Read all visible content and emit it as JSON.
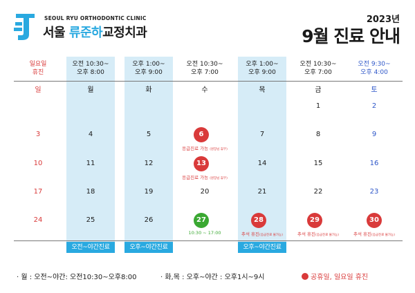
{
  "header": {
    "clinic_en": "SEOUL RYU ORTHODONTIC CLINIC",
    "clinic_ko_prefix": "서울",
    "clinic_ko_accent": "류준하",
    "clinic_ko_suffix": "교정치과",
    "year": "2023년",
    "title": "9월 진료 안내"
  },
  "columns": [
    {
      "hours": "일요일\n휴진",
      "day": "일",
      "color": "red"
    },
    {
      "hours": "오전 10:30~\n오후 8:00",
      "day": "월",
      "color": "black",
      "shaded": true
    },
    {
      "hours": "오후 1:00~\n오후 9:00",
      "day": "화",
      "color": "black",
      "shaded": true
    },
    {
      "hours": "오전 10:30~\n오후 7:00",
      "day": "수",
      "color": "black"
    },
    {
      "hours": "오후 1:00~\n오후 9:00",
      "day": "목",
      "color": "black",
      "shaded": true
    },
    {
      "hours": "오전 10:30~\n오후 7:00",
      "day": "금",
      "color": "black"
    },
    {
      "hours": "오전 9:30~\n오후 4:00",
      "day": "토",
      "color": "blue"
    }
  ],
  "dates": {
    "d1": "1",
    "d2": "2",
    "d3": "3",
    "d4": "4",
    "d5": "5",
    "d6": "6",
    "d7": "7",
    "d8": "8",
    "d9": "9",
    "d10": "10",
    "d11": "11",
    "d12": "12",
    "d13": "13",
    "d14": "14",
    "d15": "15",
    "d16": "16",
    "d17": "17",
    "d18": "18",
    "d19": "19",
    "d20": "20",
    "d21": "21",
    "d22": "22",
    "d23": "23",
    "d24": "24",
    "d25": "25",
    "d26": "26",
    "d27": "27",
    "d28": "28",
    "d29": "29",
    "d30": "30"
  },
  "notes": {
    "emergency": "응급진료 가능",
    "emergency_small": "(원장님 휴무)",
    "hours_27": "10:30 ~ 17:00",
    "chuseok": "추석 휴진",
    "chuseok_small": "(응급진료 불가능)"
  },
  "footer_buttons": {
    "mon": "오전~야간진료",
    "tue": "오후~야간진료",
    "thu": "오후~야간진료"
  },
  "legend": {
    "mon": "· 월 : 오전~야간: 오전10:30~오후8:00",
    "tuethu": "· 화,목 : 오후~야간 : 오후1시~9시",
    "holiday": "공휴일, 일요일 휴진"
  },
  "colors": {
    "accent_blue": "#29a9e0",
    "shade_blue": "#d6ecf7",
    "holiday_red": "#d93a3a",
    "saturday_blue": "#2d56c8",
    "special_green": "#3aa832"
  }
}
